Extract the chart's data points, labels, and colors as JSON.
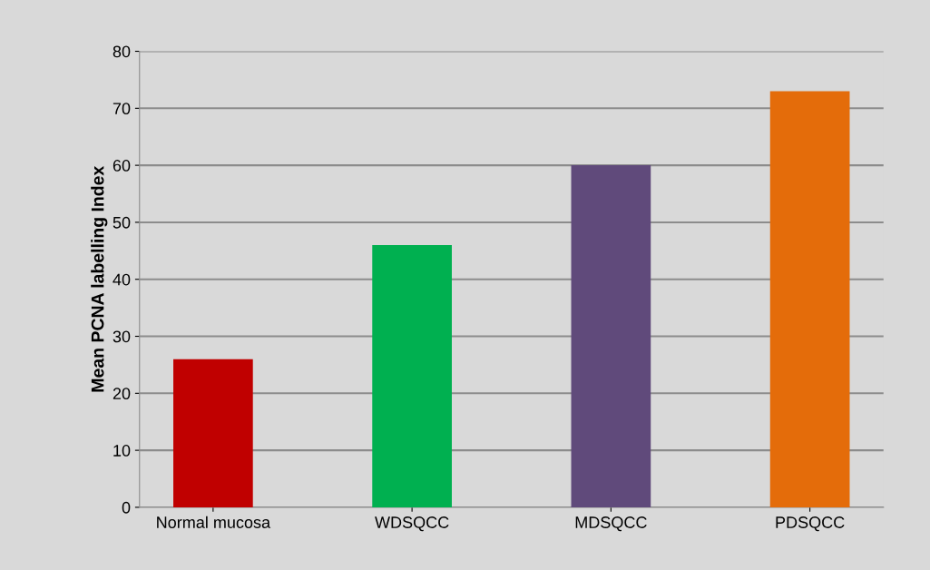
{
  "chart_data": {
    "type": "bar",
    "ylabel": "Mean PCNA labelling Index",
    "categories": [
      "Normal mucosa",
      "WDSQCC",
      "MDSQCC",
      "PDSQCC"
    ],
    "values": [
      26,
      46,
      60,
      73
    ],
    "colors": [
      "#c00000",
      "#00b050",
      "#604a7b",
      "#e46c0a"
    ],
    "ylim": [
      0,
      80
    ],
    "yticks": [
      0,
      10,
      20,
      30,
      40,
      50,
      60,
      70,
      80
    ],
    "grid": "y"
  }
}
